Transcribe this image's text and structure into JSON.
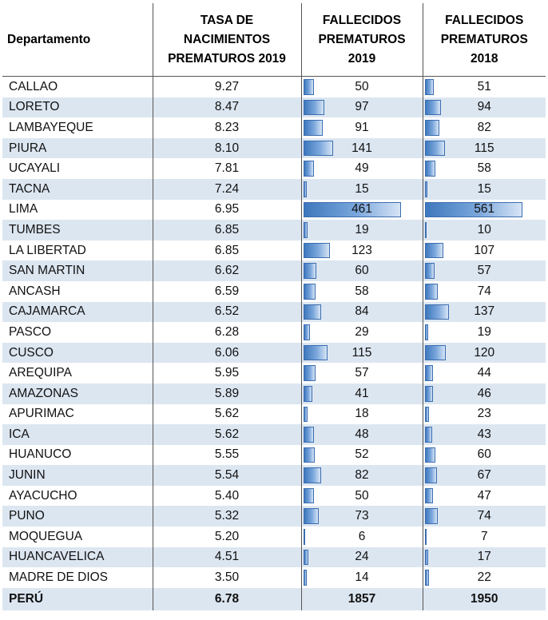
{
  "headers": {
    "department": "Departamento",
    "rate": [
      "TASA DE",
      "NACIMIENTOS",
      "PREMATUROS 2019"
    ],
    "deaths2019": [
      "FALLECIDOS",
      "PREMATUROS",
      "2019"
    ],
    "deaths2018": [
      "FALLECIDOS",
      "PREMATUROS",
      "2018"
    ]
  },
  "bar_max": {
    "deaths2019": 461,
    "deaths2018": 561
  },
  "colors": {
    "band": "#dce6f1",
    "bar_dark": "#3e78bd",
    "bar_light": "#d6e4f5"
  },
  "rows": [
    {
      "dept": "CALLAO",
      "rate": "9.27",
      "d2019": 50,
      "d2018": 51
    },
    {
      "dept": "LORETO",
      "rate": "8.47",
      "d2019": 97,
      "d2018": 94
    },
    {
      "dept": "LAMBAYEQUE",
      "rate": "8.23",
      "d2019": 91,
      "d2018": 82
    },
    {
      "dept": "PIURA",
      "rate": "8.10",
      "d2019": 141,
      "d2018": 115
    },
    {
      "dept": "UCAYALI",
      "rate": "7.81",
      "d2019": 49,
      "d2018": 58
    },
    {
      "dept": "TACNA",
      "rate": "7.24",
      "d2019": 15,
      "d2018": 15
    },
    {
      "dept": "LIMA",
      "rate": "6.95",
      "d2019": 461,
      "d2018": 561
    },
    {
      "dept": "TUMBES",
      "rate": "6.85",
      "d2019": 19,
      "d2018": 10
    },
    {
      "dept": "LA LIBERTAD",
      "rate": "6.85",
      "d2019": 123,
      "d2018": 107
    },
    {
      "dept": "SAN MARTIN",
      "rate": "6.62",
      "d2019": 60,
      "d2018": 57
    },
    {
      "dept": "ANCASH",
      "rate": "6.59",
      "d2019": 58,
      "d2018": 74
    },
    {
      "dept": "CAJAMARCA",
      "rate": "6.52",
      "d2019": 84,
      "d2018": 137
    },
    {
      "dept": "PASCO",
      "rate": "6.28",
      "d2019": 29,
      "d2018": 19
    },
    {
      "dept": "CUSCO",
      "rate": "6.06",
      "d2019": 115,
      "d2018": 120
    },
    {
      "dept": "AREQUIPA",
      "rate": "5.95",
      "d2019": 57,
      "d2018": 44
    },
    {
      "dept": "AMAZONAS",
      "rate": "5.89",
      "d2019": 41,
      "d2018": 46
    },
    {
      "dept": "APURIMAC",
      "rate": "5.62",
      "d2019": 18,
      "d2018": 23
    },
    {
      "dept": "ICA",
      "rate": "5.62",
      "d2019": 48,
      "d2018": 43
    },
    {
      "dept": "HUANUCO",
      "rate": "5.55",
      "d2019": 52,
      "d2018": 60
    },
    {
      "dept": "JUNIN",
      "rate": "5.54",
      "d2019": 82,
      "d2018": 67
    },
    {
      "dept": "AYACUCHO",
      "rate": "5.40",
      "d2019": 50,
      "d2018": 47
    },
    {
      "dept": "PUNO",
      "rate": "5.32",
      "d2019": 73,
      "d2018": 74
    },
    {
      "dept": "MOQUEGUA",
      "rate": "5.20",
      "d2019": 6,
      "d2018": 7
    },
    {
      "dept": "HUANCAVELICA",
      "rate": "4.51",
      "d2019": 24,
      "d2018": 17
    },
    {
      "dept": "MADRE DE DIOS",
      "rate": "3.50",
      "d2019": 14,
      "d2018": 22
    }
  ],
  "total": {
    "dept": "PERÚ",
    "rate": "6.78",
    "d2019": 1857,
    "d2018": 1950
  }
}
